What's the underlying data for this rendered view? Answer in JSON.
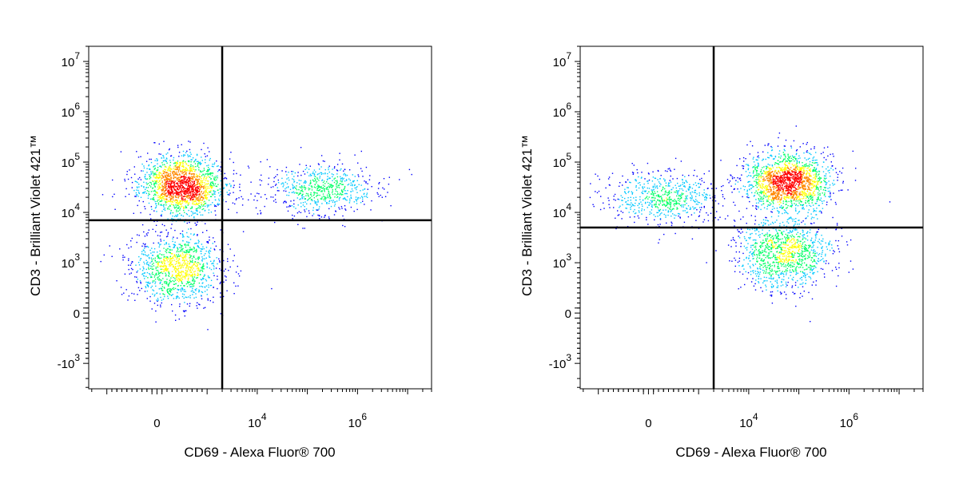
{
  "chart_data": [
    {
      "type": "scatter",
      "subtype": "flow-cytometry-density-dot-plot",
      "xlabel": "CD69 - Alexa Fluor® 700",
      "ylabel": "CD3 - Brilliant Violet 421™",
      "x_scale": "biexponential",
      "y_scale": "biexponential",
      "x_tick_labels": [
        {
          "value": 0,
          "base": "0",
          "exp": ""
        },
        {
          "value": 10000,
          "base": "10",
          "exp": "4"
        },
        {
          "value": 1000000,
          "base": "10",
          "exp": "6"
        }
      ],
      "y_tick_labels": [
        {
          "value": 10000000,
          "base": "10",
          "exp": "7"
        },
        {
          "value": 1000000,
          "base": "10",
          "exp": "6"
        },
        {
          "value": 100000,
          "base": "10",
          "exp": "5"
        },
        {
          "value": 10000,
          "base": "10",
          "exp": "4"
        },
        {
          "value": 1000,
          "base": "10",
          "exp": "3"
        },
        {
          "value": 0,
          "base": "0",
          "exp": ""
        },
        {
          "value": -1000,
          "base": "-10",
          "exp": "3"
        }
      ],
      "quadrant_gate": {
        "x": 2000,
        "y": 7000
      },
      "populations": [
        {
          "x_center": 500,
          "y_center": 35000,
          "density": "high"
        },
        {
          "x_center": 200000,
          "y_center": 30000,
          "density": "low"
        },
        {
          "x_center": 400,
          "y_center": 900,
          "density": "medium"
        }
      ],
      "colors": [
        "#0000ff",
        "#00c8ff",
        "#00ff66",
        "#ffff00",
        "#ff8800",
        "#ff0000"
      ],
      "grid": false,
      "legend": "none"
    },
    {
      "type": "scatter",
      "subtype": "flow-cytometry-density-dot-plot",
      "xlabel": "CD69 - Alexa Fluor® 700",
      "ylabel": "CD3 - Brilliant Violet 421™",
      "x_scale": "biexponential",
      "y_scale": "biexponential",
      "x_tick_labels": [
        {
          "value": 0,
          "base": "0",
          "exp": ""
        },
        {
          "value": 10000,
          "base": "10",
          "exp": "4"
        },
        {
          "value": 1000000,
          "base": "10",
          "exp": "6"
        }
      ],
      "y_tick_labels": [
        {
          "value": 10000000,
          "base": "10",
          "exp": "7"
        },
        {
          "value": 1000000,
          "base": "10",
          "exp": "6"
        },
        {
          "value": 100000,
          "base": "10",
          "exp": "5"
        },
        {
          "value": 10000,
          "base": "10",
          "exp": "4"
        },
        {
          "value": 1000,
          "base": "10",
          "exp": "3"
        },
        {
          "value": 0,
          "base": "0",
          "exp": ""
        },
        {
          "value": -1000,
          "base": "-10",
          "exp": "3"
        }
      ],
      "quadrant_gate": {
        "x": 2000,
        "y": 5000
      },
      "populations": [
        {
          "x_center": 60000,
          "y_center": 40000,
          "density": "high"
        },
        {
          "x_center": 300,
          "y_center": 20000,
          "density": "low"
        },
        {
          "x_center": 50000,
          "y_center": 1500,
          "density": "medium"
        }
      ],
      "colors": [
        "#0000ff",
        "#00c8ff",
        "#00ff66",
        "#ffff00",
        "#ff8800",
        "#ff0000"
      ],
      "grid": false,
      "legend": "none"
    }
  ]
}
